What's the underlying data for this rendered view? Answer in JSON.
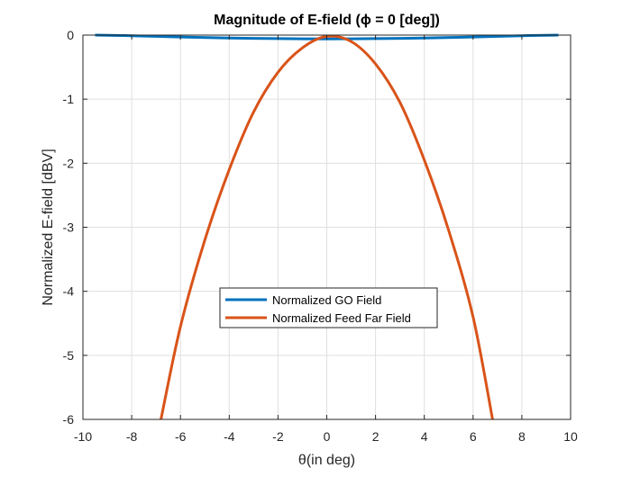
{
  "chart_data": {
    "type": "line",
    "title": "Magnitude of E-field (ϕ = 0 [deg])",
    "xlabel": "θ(in deg)",
    "ylabel": "Normalized E-field [dBV]",
    "xlim": [
      -10,
      10
    ],
    "ylim": [
      -6,
      0
    ],
    "xticks": [
      -10,
      -8,
      -6,
      -4,
      -2,
      0,
      2,
      4,
      6,
      8,
      10
    ],
    "yticks": [
      0,
      -1,
      -2,
      -3,
      -4,
      -5,
      -6
    ],
    "grid": true,
    "legend_position": "lower-center",
    "series": [
      {
        "name": "Normalized GO Field",
        "color": "#0072BD",
        "x": [
          -9.5,
          -8,
          -6,
          -4,
          -2,
          0,
          2,
          4,
          6,
          8,
          9.5
        ],
        "y": [
          0.0,
          -0.01,
          -0.03,
          -0.045,
          -0.055,
          -0.06,
          -0.055,
          -0.045,
          -0.03,
          -0.01,
          0.0
        ]
      },
      {
        "name": "Normalized Feed Far Field",
        "color": "#D95319",
        "x": [
          -6.8,
          -6,
          -5,
          -4,
          -3,
          -2,
          -1,
          0,
          1,
          2,
          3,
          4,
          5,
          6,
          6.8
        ],
        "y": [
          -6.0,
          -4.55,
          -3.2,
          -2.1,
          -1.2,
          -0.58,
          -0.2,
          -0.02,
          -0.1,
          -0.45,
          -1.05,
          -1.95,
          -3.05,
          -4.4,
          -6.0
        ]
      }
    ]
  }
}
